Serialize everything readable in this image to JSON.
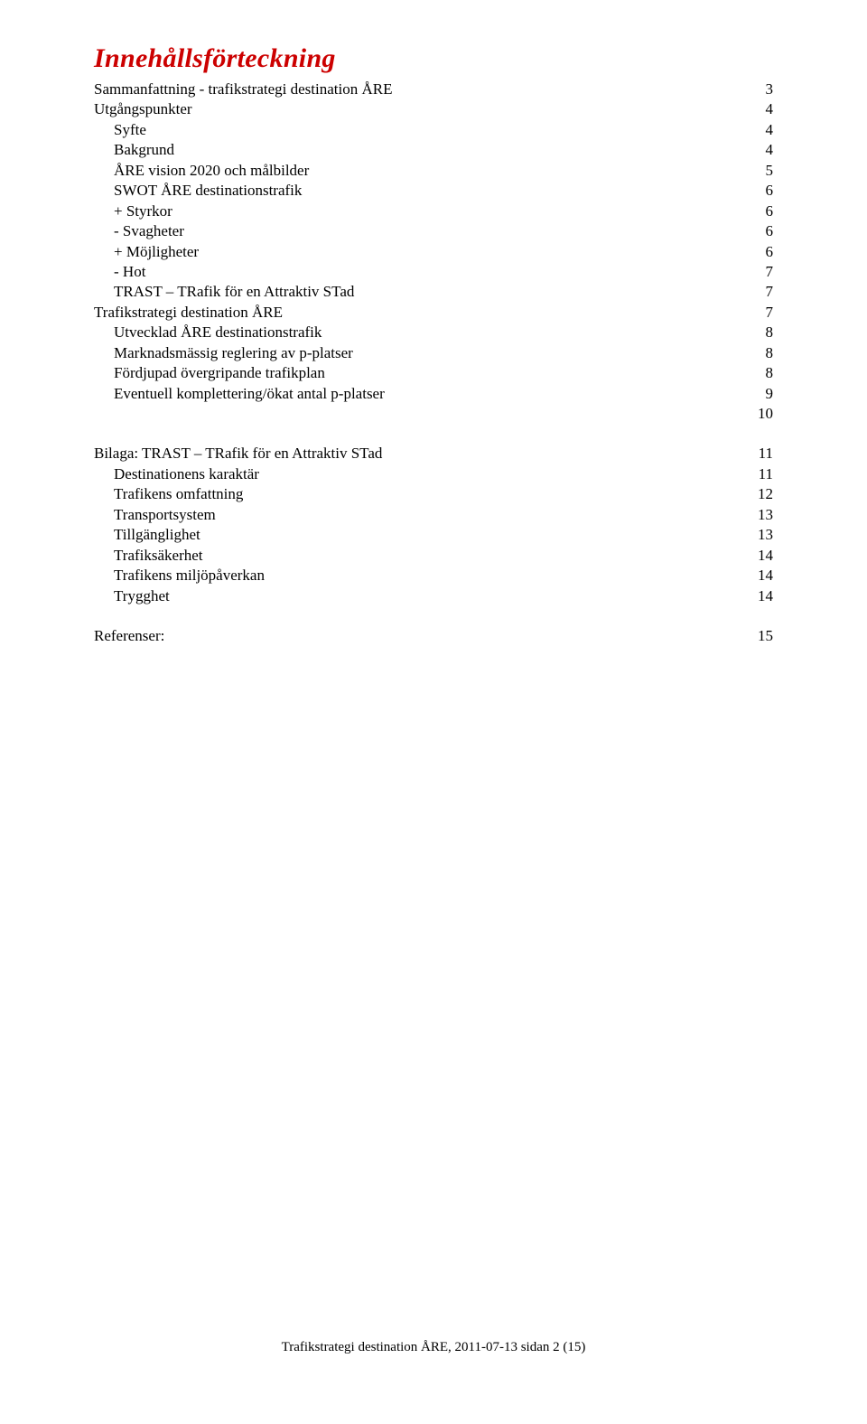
{
  "title": "Innehållsförteckning",
  "title_color": "#cc0000",
  "text_color": "#000000",
  "background_color": "#ffffff",
  "font_family": "Garamond",
  "toc": [
    {
      "label": "Sammanfattning - trafikstrategi destination ÅRE",
      "page": "3",
      "level": 0,
      "gap": false
    },
    {
      "label": "Utgångspunkter",
      "page": "4",
      "level": 0,
      "gap": false
    },
    {
      "label": "Syfte",
      "page": "4",
      "level": 1,
      "gap": false
    },
    {
      "label": "Bakgrund",
      "page": "4",
      "level": 1,
      "gap": false
    },
    {
      "label": "ÅRE vision 2020 och målbilder",
      "page": "5",
      "level": 1,
      "gap": false
    },
    {
      "label": "SWOT ÅRE destinationstrafik",
      "page": "6",
      "level": 1,
      "gap": false
    },
    {
      "label": "+ Styrkor",
      "page": "6",
      "level": 1,
      "gap": false
    },
    {
      "label": "- Svagheter",
      "page": "6",
      "level": 1,
      "gap": false
    },
    {
      "label": "+ Möjligheter",
      "page": "6",
      "level": 1,
      "gap": false
    },
    {
      "label": "- Hot",
      "page": "7",
      "level": 1,
      "gap": false
    },
    {
      "label": "TRAST – TRafik för en Attraktiv STad",
      "page": "7",
      "level": 1,
      "gap": false
    },
    {
      "label": "Trafikstrategi destination ÅRE",
      "page": "7",
      "level": 0,
      "gap": false
    },
    {
      "label": "Utvecklad ÅRE destinationstrafik",
      "page": "8",
      "level": 1,
      "gap": false
    },
    {
      "label": "Marknadsmässig reglering av p-platser",
      "page": "8",
      "level": 1,
      "gap": false
    },
    {
      "label": "Fördjupad övergripande trafikplan",
      "page": "8",
      "level": 1,
      "gap": false
    },
    {
      "label": "Eventuell komplettering/ökat antal p-platser",
      "page": "9",
      "level": 1,
      "gap": false
    },
    {
      "label": "",
      "page": "10",
      "level": 1,
      "gap": false
    },
    {
      "label": "Bilaga: TRAST – TRafik för en Attraktiv STad",
      "page": "11",
      "level": 0,
      "gap": true
    },
    {
      "label": "Destinationens karaktär",
      "page": "11",
      "level": 1,
      "gap": false
    },
    {
      "label": "Trafikens omfattning",
      "page": "12",
      "level": 1,
      "gap": false
    },
    {
      "label": "Transportsystem",
      "page": "13",
      "level": 1,
      "gap": false
    },
    {
      "label": "Tillgänglighet",
      "page": "13",
      "level": 1,
      "gap": false
    },
    {
      "label": "Trafiksäkerhet",
      "page": "14",
      "level": 1,
      "gap": false
    },
    {
      "label": "Trafikens miljöpåverkan",
      "page": "14",
      "level": 1,
      "gap": false
    },
    {
      "label": "Trygghet",
      "page": "14",
      "level": 1,
      "gap": false
    },
    {
      "label": "Referenser:",
      "page": "15",
      "level": 0,
      "gap": true
    }
  ],
  "footer": "Trafikstrategi destination ÅRE, 2011-07-13 sidan 2 (15)"
}
